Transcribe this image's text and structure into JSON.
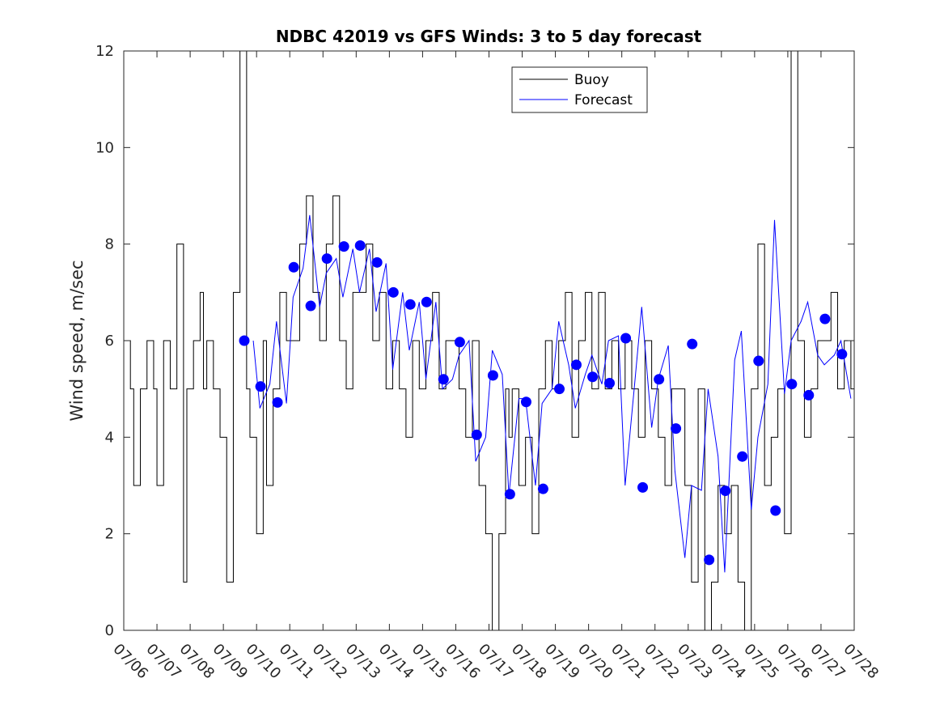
{
  "chart_data": {
    "type": "line",
    "title": "NDBC 42019 vs GFS Winds: 3 to 5 day forecast",
    "xlabel": "",
    "ylabel": "Wind speed, m/sec",
    "xlim": [
      "07/06",
      "07/28"
    ],
    "ylim": [
      0,
      12
    ],
    "yticks": [
      0,
      2,
      4,
      6,
      8,
      10,
      12
    ],
    "xticks": [
      "07/06",
      "07/07",
      "07/08",
      "07/09",
      "07/10",
      "07/11",
      "07/12",
      "07/13",
      "07/14",
      "07/15",
      "07/16",
      "07/17",
      "07/18",
      "07/19",
      "07/20",
      "07/21",
      "07/22",
      "07/23",
      "07/24",
      "07/25",
      "07/26",
      "07/27",
      "07/28"
    ],
    "grid": false,
    "legend_position": "top-center",
    "colors": {
      "buoy": "#000000",
      "forecast": "#0000ff"
    },
    "series": [
      {
        "name": "Buoy",
        "x": [
          0.0,
          0.2,
          0.3,
          0.5,
          0.7,
          0.9,
          1.0,
          1.2,
          1.4,
          1.6,
          1.8,
          1.9,
          2.1,
          2.3,
          2.4,
          2.5,
          2.7,
          2.9,
          3.1,
          3.3,
          3.5,
          3.7,
          3.8,
          4.0,
          4.2,
          4.3,
          4.5,
          4.7,
          4.9,
          5.1,
          5.3,
          5.5,
          5.7,
          5.9,
          6.1,
          6.3,
          6.5,
          6.7,
          6.9,
          7.1,
          7.3,
          7.5,
          7.7,
          7.9,
          8.1,
          8.3,
          8.5,
          8.7,
          8.9,
          9.1,
          9.3,
          9.5,
          9.7,
          9.9,
          10.1,
          10.3,
          10.5,
          10.7,
          10.9,
          11.1,
          11.3,
          11.5,
          11.6,
          11.7,
          11.9,
          12.1,
          12.3,
          12.5,
          12.7,
          12.9,
          13.1,
          13.3,
          13.5,
          13.7,
          13.9,
          14.1,
          14.3,
          14.5,
          14.7,
          14.9,
          15.1,
          15.3,
          15.5,
          15.7,
          15.9,
          16.1,
          16.3,
          16.5,
          16.7,
          16.9,
          17.1,
          17.3,
          17.5,
          17.7,
          17.9,
          18.1,
          18.3,
          18.5,
          18.7,
          18.9,
          19.1,
          19.3,
          19.5,
          19.7,
          19.9,
          20.1,
          20.3,
          20.5,
          20.7,
          20.9,
          21.1,
          21.3,
          21.5,
          21.7,
          21.9,
          22.0
        ],
        "y": [
          6,
          5,
          3,
          5,
          6,
          5,
          3,
          6,
          5,
          8,
          1,
          5,
          6,
          7,
          5,
          6,
          5,
          4,
          1,
          7,
          12,
          5,
          4,
          2,
          6,
          3,
          5,
          7,
          6,
          6,
          8,
          9,
          7,
          6,
          8,
          9,
          6,
          5,
          7,
          7,
          8,
          6,
          7,
          5,
          6,
          5,
          4,
          6,
          5,
          6,
          7,
          5,
          6,
          6,
          5,
          4,
          6,
          3,
          2,
          0,
          2,
          5,
          4,
          5,
          3,
          4,
          2,
          5,
          6,
          5,
          6,
          7,
          4,
          6,
          7,
          5,
          7,
          5,
          6,
          5,
          6,
          5,
          4,
          6,
          5,
          4,
          3,
          5,
          5,
          3,
          1,
          5,
          0,
          1,
          3,
          2,
          3,
          1,
          0,
          5,
          8,
          3,
          4,
          5,
          2,
          12,
          6,
          4,
          5,
          6,
          6,
          7,
          5,
          6,
          5,
          6
        ]
      },
      {
        "name": "Forecast",
        "x": [
          3.9,
          4.1,
          4.4,
          4.6,
          4.9,
          5.1,
          5.4,
          5.6,
          5.9,
          6.1,
          6.4,
          6.6,
          6.9,
          7.1,
          7.4,
          7.6,
          7.9,
          8.1,
          8.4,
          8.6,
          8.9,
          9.1,
          9.4,
          9.6,
          9.9,
          10.1,
          10.4,
          10.6,
          10.9,
          11.1,
          11.4,
          11.6,
          11.9,
          12.1,
          12.4,
          12.6,
          12.9,
          13.1,
          13.4,
          13.6,
          13.9,
          14.1,
          14.4,
          14.6,
          14.9,
          15.1,
          15.4,
          15.6,
          15.9,
          16.1,
          16.4,
          16.6,
          16.9,
          17.1,
          17.4,
          17.6,
          17.9,
          18.1,
          18.4,
          18.6,
          18.9,
          19.1,
          19.4,
          19.6,
          19.9,
          20.1,
          20.4,
          20.6,
          20.9,
          21.1,
          21.4,
          21.6,
          21.9
        ],
        "y": [
          6.0,
          4.6,
          5.1,
          6.4,
          4.7,
          6.9,
          7.5,
          8.6,
          6.7,
          7.4,
          7.7,
          6.9,
          7.9,
          7.0,
          7.9,
          6.6,
          7.6,
          5.4,
          7.0,
          5.8,
          6.8,
          5.2,
          6.8,
          5.0,
          5.2,
          5.7,
          6.0,
          3.5,
          4.0,
          5.8,
          5.3,
          2.8,
          4.8,
          4.8,
          3.0,
          4.7,
          5.0,
          6.4,
          5.5,
          4.6,
          5.3,
          5.7,
          5.1,
          6.0,
          6.1,
          3.0,
          5.2,
          6.7,
          4.2,
          5.2,
          5.9,
          3.3,
          1.5,
          3.0,
          2.9,
          5.0,
          3.6,
          1.2,
          5.6,
          6.2,
          2.5,
          4.0,
          5.1,
          8.5,
          4.9,
          6.0,
          6.4,
          6.8,
          5.7,
          5.5,
          5.7,
          6.0,
          4.8
        ]
      }
    ],
    "markers": {
      "x": [
        3.63,
        4.12,
        4.63,
        5.12,
        5.63,
        6.12,
        6.63,
        7.12,
        7.63,
        8.12,
        8.63,
        9.12,
        9.63,
        10.12,
        10.63,
        11.12,
        11.63,
        12.12,
        12.63,
        13.12,
        13.63,
        14.12,
        14.63,
        15.12,
        15.63,
        16.12,
        16.63,
        17.12,
        17.63,
        18.12,
        18.63,
        19.12,
        19.63,
        20.12,
        20.63,
        21.12,
        21.63
      ],
      "y": [
        6.0,
        5.05,
        4.72,
        7.52,
        6.72,
        7.7,
        7.95,
        7.97,
        7.62,
        7.0,
        6.75,
        6.8,
        5.2,
        5.97,
        4.05,
        5.28,
        2.82,
        4.73,
        2.93,
        5.0,
        5.5,
        5.25,
        5.12,
        6.05,
        2.96,
        5.2,
        4.18,
        5.93,
        1.46,
        2.89,
        3.6,
        5.58,
        2.48,
        5.1,
        4.87,
        6.45,
        5.72
      ]
    }
  },
  "legend": {
    "items": [
      {
        "label": "Buoy",
        "color": "#000000"
      },
      {
        "label": "Forecast",
        "color": "#0000ff"
      }
    ]
  }
}
